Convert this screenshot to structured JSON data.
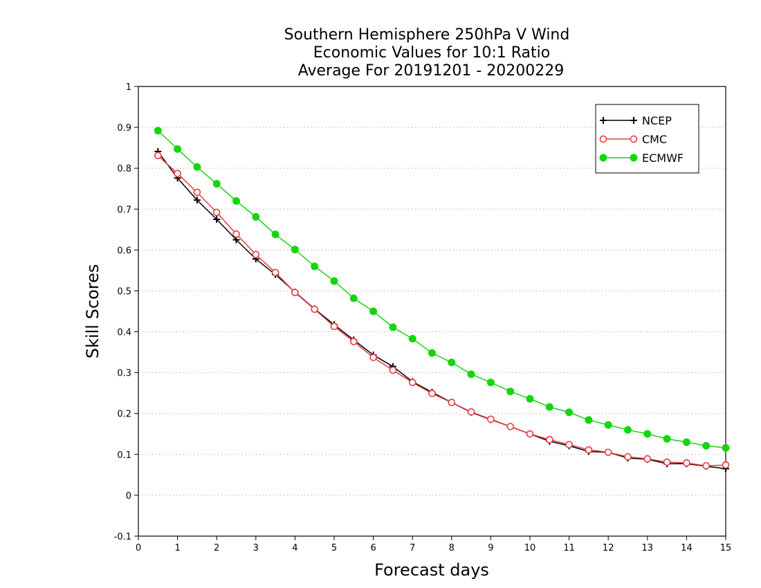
{
  "chart_data": {
    "type": "line",
    "title_lines": [
      "Southern Hemisphere 250hPa V Wind",
      "Economic Values for 10:1 Ratio",
      "Average For 20191201 - 20200229"
    ],
    "xlabel": "Forecast days",
    "ylabel": "Skill Scores",
    "xlim": [
      0,
      15
    ],
    "ylim": [
      -0.1,
      1
    ],
    "xticks": [
      "0",
      "1",
      "2",
      "3",
      "4",
      "5",
      "6",
      "7",
      "8",
      "9",
      "10",
      "11",
      "12",
      "13",
      "14",
      "15"
    ],
    "yticks": [
      "-0.1",
      "0",
      "0.1",
      "0.2",
      "0.3",
      "0.4",
      "0.5",
      "0.6",
      "0.7",
      "0.8",
      "0.9",
      "1"
    ],
    "grid": "horizontal dotted",
    "legend_position": "top-right",
    "x": [
      0.5,
      1,
      1.5,
      2,
      2.5,
      3,
      3.5,
      4,
      4.5,
      5,
      5.5,
      6,
      6.5,
      7,
      7.5,
      8,
      8.5,
      9,
      9.5,
      10,
      10.5,
      11,
      11.5,
      12,
      12.5,
      13,
      13.5,
      14,
      14.5,
      15
    ],
    "series": [
      {
        "name": "NCEP",
        "color": "#000000",
        "marker": "plus",
        "values": [
          0.841,
          0.776,
          0.722,
          0.675,
          0.625,
          0.578,
          0.54,
          0.497,
          0.456,
          0.417,
          0.38,
          0.343,
          0.315,
          0.278,
          0.252,
          0.227,
          0.203,
          0.185,
          0.168,
          0.15,
          0.132,
          0.121,
          0.107,
          0.105,
          0.091,
          0.088,
          0.077,
          0.077,
          0.071,
          0.065
        ]
      },
      {
        "name": "CMC",
        "color": "#e8393c",
        "marker": "open-circle",
        "values": [
          0.831,
          0.787,
          0.741,
          0.692,
          0.639,
          0.589,
          0.545,
          0.496,
          0.455,
          0.413,
          0.376,
          0.337,
          0.306,
          0.276,
          0.249,
          0.227,
          0.204,
          0.186,
          0.168,
          0.15,
          0.136,
          0.124,
          0.111,
          0.105,
          0.094,
          0.089,
          0.081,
          0.079,
          0.072,
          0.074
        ]
      },
      {
        "name": "ECMWF",
        "color": "#16d50f",
        "marker": "filled-circle",
        "values": [
          0.892,
          0.847,
          0.803,
          0.762,
          0.72,
          0.681,
          0.638,
          0.601,
          0.56,
          0.524,
          0.482,
          0.45,
          0.411,
          0.383,
          0.348,
          0.325,
          0.296,
          0.276,
          0.254,
          0.236,
          0.216,
          0.203,
          0.184,
          0.172,
          0.16,
          0.15,
          0.138,
          0.13,
          0.121,
          0.116
        ]
      }
    ]
  }
}
